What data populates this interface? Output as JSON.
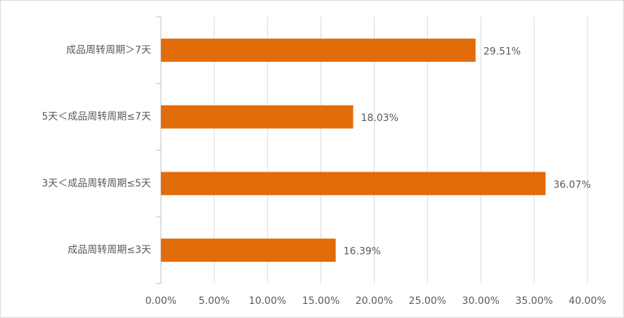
{
  "chart_data": {
    "type": "hbar",
    "categories": [
      "成品周转周期＞7天",
      "5天＜成品周转周期≤7天",
      "3天＜成品周转周期≤5天",
      "成品周转周期≤3天"
    ],
    "values": [
      29.51,
      18.03,
      36.07,
      16.39
    ],
    "value_labels": [
      "29.51%",
      "18.03%",
      "36.07%",
      "16.39%"
    ],
    "color": "#e36c0a",
    "xlim": [
      0,
      40
    ],
    "xticks": [
      {
        "value": 0,
        "label": "0.00%"
      },
      {
        "value": 5,
        "label": "5.00%"
      },
      {
        "value": 10,
        "label": "10.00%"
      },
      {
        "value": 15,
        "label": "15.00%"
      },
      {
        "value": 20,
        "label": "20.00%"
      },
      {
        "value": 25,
        "label": "25.00%"
      },
      {
        "value": 30,
        "label": "30.00%"
      },
      {
        "value": 35,
        "label": "35.00%"
      },
      {
        "value": 40,
        "label": "40.00%"
      }
    ],
    "grid": true
  }
}
